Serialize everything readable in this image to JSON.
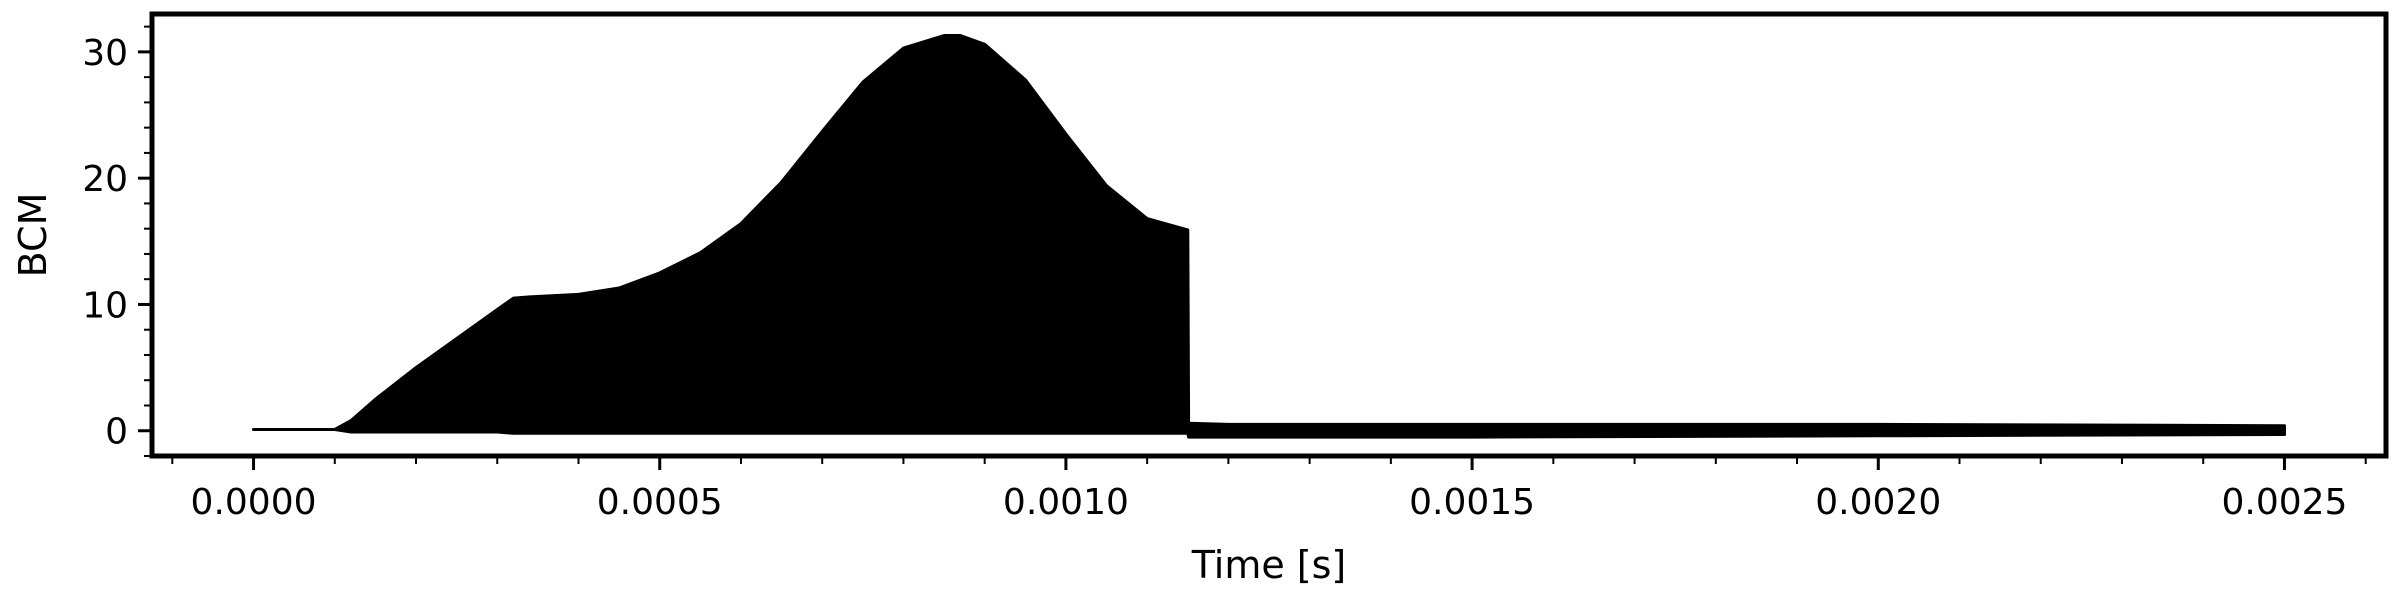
{
  "chart_data": {
    "type": "area",
    "title": "",
    "xlabel": "Time [s]",
    "ylabel": "BCM",
    "xlim": [
      -0.000125,
      0.002625
    ],
    "ylim": [
      -2,
      33
    ],
    "grid": false,
    "x_ticks": [
      0.0,
      0.0005,
      0.001,
      0.0015,
      0.002,
      0.0025
    ],
    "x_tick_labels": [
      "0.0000",
      "0.0005",
      "0.0010",
      "0.0015",
      "0.0020",
      "0.0025"
    ],
    "y_ticks": [
      0,
      10,
      20,
      30
    ],
    "y_tick_labels": [
      "0",
      "10",
      "20",
      "30"
    ],
    "series": [
      {
        "color": "#000000",
        "x": [
          0.0,
          0.0001,
          0.00012,
          0.00015,
          0.0002,
          0.00025,
          0.0003,
          0.00032,
          0.00034,
          0.0004,
          0.00045,
          0.0005,
          0.00055,
          0.0006,
          0.00065,
          0.0007,
          0.00075,
          0.0008,
          0.00085,
          0.00087,
          0.0009,
          0.00095,
          0.001,
          0.00105,
          0.0011,
          0.00115,
          0.001151,
          0.0012,
          0.0015,
          0.002,
          0.0025
        ],
        "upper": [
          0.1,
          0.1,
          0.8,
          2.5,
          5.0,
          7.3,
          9.6,
          10.5,
          10.6,
          10.8,
          11.3,
          12.5,
          14.1,
          16.4,
          19.7,
          23.7,
          27.6,
          30.3,
          31.3,
          31.3,
          30.6,
          27.8,
          23.5,
          19.4,
          16.8,
          15.9,
          0.6,
          0.5,
          0.5,
          0.5,
          0.4
        ],
        "lower": [
          0.1,
          0.1,
          -0.1,
          -0.1,
          -0.1,
          -0.1,
          -0.1,
          -0.2,
          -0.2,
          -0.2,
          -0.2,
          -0.2,
          -0.2,
          -0.2,
          -0.2,
          -0.2,
          -0.2,
          -0.2,
          -0.2,
          -0.2,
          -0.2,
          -0.2,
          -0.2,
          -0.2,
          -0.2,
          -0.2,
          -0.5,
          -0.5,
          -0.5,
          -0.4,
          -0.3
        ]
      }
    ]
  }
}
